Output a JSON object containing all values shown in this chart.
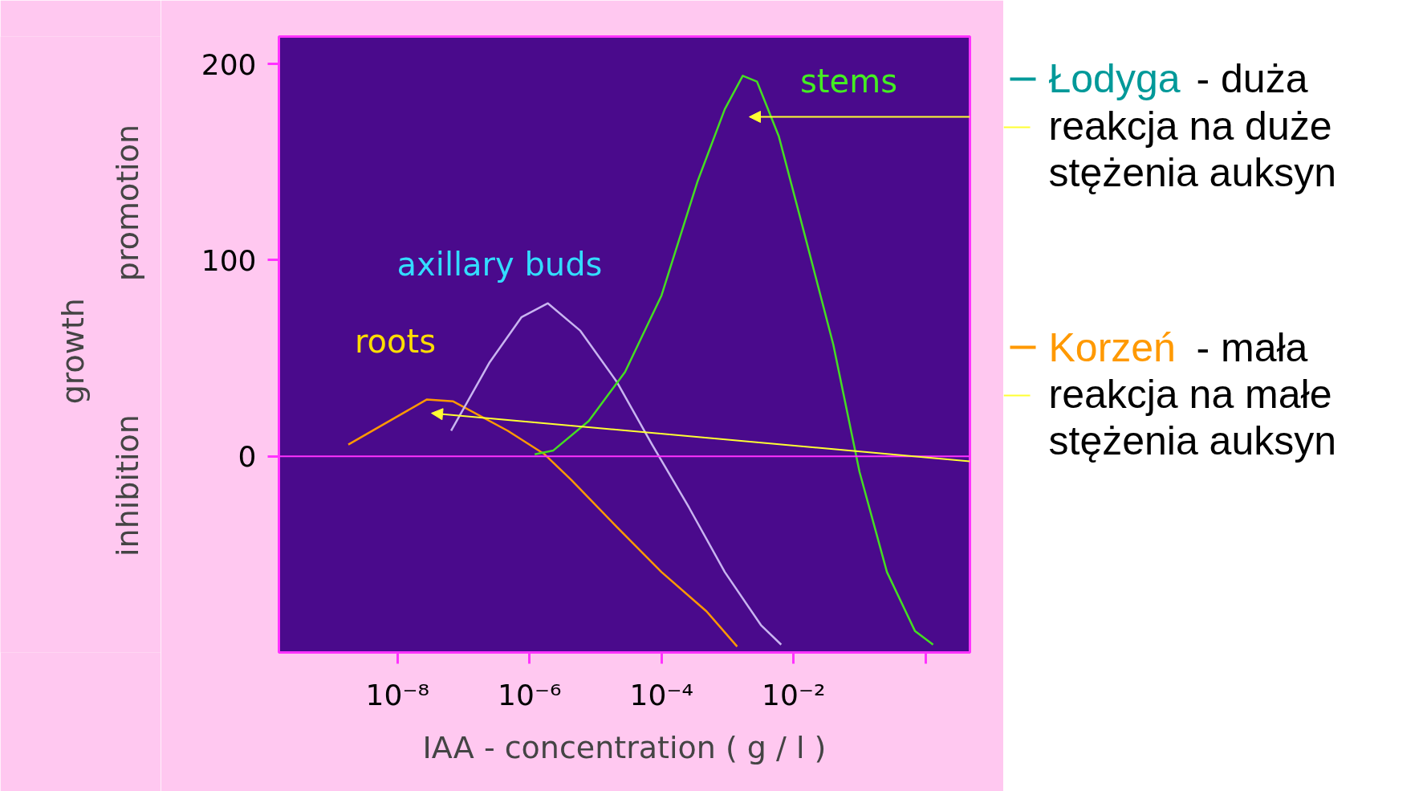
{
  "chart_data": {
    "type": "line",
    "xlabel": "IAA - concentration ( g / l )",
    "ylabel": "growth",
    "log": "x",
    "xlim": [
      1.6e-10,
      4.7
    ],
    "ylim": [
      -100,
      214
    ],
    "xticks": [
      {
        "value": 1e-08,
        "label": "10⁻⁸"
      },
      {
        "value": 1e-06,
        "label": "10⁻⁶"
      },
      {
        "value": 0.0001,
        "label": "10⁻⁴"
      },
      {
        "value": 0.01,
        "label": "10⁻²"
      },
      {
        "value": 1,
        "label": null
      }
    ],
    "yticks": [
      0,
      100,
      200
    ],
    "grid": false,
    "marker": "none",
    "line_style": "solid",
    "ref_lines": [
      {
        "axis": "y",
        "value": 0,
        "color": "#ff33ff"
      }
    ],
    "series": [
      {
        "name": "roots",
        "color": "#ff9900",
        "x": [
          1.8e-09,
          2.8e-08,
          7e-08,
          4.7e-07,
          1.7e-06,
          4.3e-06,
          2.1e-05,
          0.0001,
          0.00048,
          0.0014
        ],
        "values": [
          6,
          29,
          28,
          13,
          1,
          -12,
          -36,
          -59,
          -79,
          -97
        ]
      },
      {
        "name": "axillary buds",
        "color": "#c8b4f0",
        "x": [
          6.5e-08,
          2.5e-07,
          7.6e-07,
          1.9e-06,
          5.9e-06,
          2.1e-05,
          7.2e-05,
          0.00026,
          0.00091,
          0.0032,
          0.0065
        ],
        "values": [
          13,
          48,
          71,
          78,
          64,
          38,
          6,
          -26,
          -59,
          -86,
          -96
        ]
      },
      {
        "name": "stems",
        "color": "#44dd22",
        "x": [
          1.2e-06,
          2.3e-06,
          7.9e-06,
          2.8e-05,
          0.0001,
          0.00035,
          0.00091,
          0.0017,
          0.0028,
          0.006,
          0.015,
          0.04,
          0.1,
          0.26,
          0.69,
          1.3
        ],
        "values": [
          1,
          3,
          18,
          43,
          82,
          140,
          177,
          194,
          191,
          163,
          112,
          57,
          -8,
          -59,
          -89,
          -96
        ]
      }
    ],
    "annotations": [
      "promotion",
      "inhibition",
      "Łodyga - duża reakcja na duże stężenia auksyn",
      "Korzeń - mała reakcja na małe stężenia auksyn"
    ]
  }
}
